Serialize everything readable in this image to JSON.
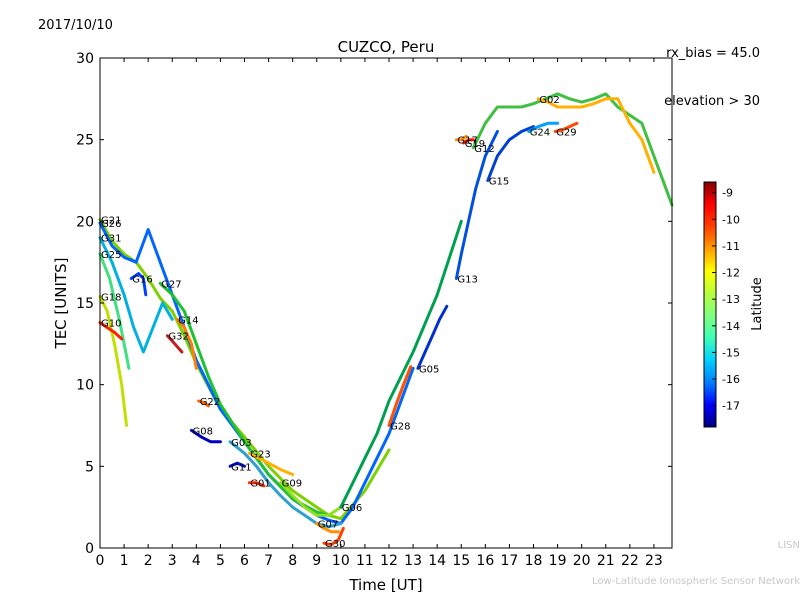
{
  "header": {
    "date": "2017/10/10",
    "rx_bias": "rx_bias = 45.0",
    "elevation": "elevation > 30"
  },
  "footer": {
    "line1": "LISN",
    "line2": "Low-Latitude Ionospheric Sensor Network"
  },
  "chart_data": {
    "type": "scatter",
    "title": "CUZCO, Peru",
    "xlabel": "Time [UT]",
    "ylabel": "TEC [UNITS]",
    "xlim": [
      0,
      23.75
    ],
    "ylim": [
      0,
      30
    ],
    "xticks": [
      "0",
      "1",
      "2",
      "3",
      "4",
      "5",
      "6",
      "7",
      "8",
      "9",
      "10",
      "11",
      "12",
      "13",
      "14",
      "15",
      "16",
      "17",
      "18",
      "19",
      "20",
      "21",
      "22",
      "23"
    ],
    "yticks": [
      "0",
      "5",
      "10",
      "15",
      "20",
      "25",
      "30"
    ],
    "grid": false,
    "colorbar": {
      "label": "Latitude",
      "range": [
        -17.8,
        -8.6
      ],
      "ticks": [
        "-9",
        "-10",
        "-11",
        "-12",
        "-13",
        "-14",
        "-15",
        "-16",
        "-17"
      ],
      "colormap": [
        "#00007f",
        "#0000ff",
        "#007fff",
        "#00cfff",
        "#3fffb7",
        "#7fff7f",
        "#b7ff3f",
        "#ffff00",
        "#ff9f00",
        "#ff3f00",
        "#ff0000",
        "#7f0000"
      ]
    },
    "series": [
      {
        "name": "G21",
        "color": "#7fd000",
        "x": [
          0,
          0.5,
          1,
          1.5,
          2,
          2.5,
          3,
          3.5,
          4,
          5,
          6,
          7,
          8,
          9,
          9.5,
          10,
          11,
          12
        ],
        "y": [
          20.1,
          18.8,
          18,
          17.5,
          16.5,
          15.3,
          14.5,
          13,
          11.3,
          8.5,
          6.8,
          5,
          3.5,
          2.5,
          2,
          1.8,
          3.5,
          6
        ]
      },
      {
        "name": "G26",
        "color": "#0066ff",
        "x": [
          0,
          0.5,
          1,
          1.5,
          2,
          2.5,
          3,
          4,
          5,
          6,
          7,
          8,
          9,
          9.5,
          10,
          10.5,
          11,
          12,
          13
        ],
        "y": [
          19.9,
          18.5,
          17.8,
          17.5,
          19.5,
          17.5,
          15.5,
          11.5,
          8.5,
          6.5,
          4.5,
          3,
          2,
          1.7,
          1.5,
          2.5,
          4,
          7,
          11
        ]
      },
      {
        "name": "G31",
        "color": "#00b0e0",
        "x": [
          0,
          0.5,
          1,
          1.4,
          1.8,
          2.2,
          2.6,
          3
        ],
        "y": [
          19,
          17.5,
          15.5,
          13.5,
          12,
          13.5,
          15,
          14
        ]
      },
      {
        "name": "G25",
        "color": "#40e080",
        "x": [
          0,
          0.4,
          0.8,
          1.2
        ],
        "y": [
          18,
          16.5,
          14,
          11
        ]
      },
      {
        "name": "G18",
        "color": "#c0e000",
        "x": [
          0,
          0.3,
          0.6,
          0.9,
          1.1
        ],
        "y": [
          15.4,
          14.5,
          12.5,
          10,
          7.5
        ]
      },
      {
        "name": "G10",
        "color": "#ff2000",
        "x": [
          0,
          0.3,
          0.6,
          0.9
        ],
        "y": [
          13.8,
          13.5,
          13.2,
          12.8
        ]
      },
      {
        "name": "G16",
        "color": "#0040ff",
        "x": [
          1.3,
          1.6,
          1.8,
          1.9
        ],
        "y": [
          16.5,
          16.8,
          16.5,
          15.5
        ]
      },
      {
        "name": "G27",
        "color": "#20c030",
        "x": [
          2.5,
          3,
          3.5,
          4,
          4.5,
          5,
          6,
          7,
          8,
          9,
          9.5
        ],
        "y": [
          16.2,
          15.5,
          14.5,
          12.5,
          10.5,
          8.8,
          6.5,
          4.5,
          3,
          2.2,
          2
        ]
      },
      {
        "name": "G14",
        "color": "#ff8000",
        "x": [
          3.2,
          3.5,
          3.8,
          4
        ],
        "y": [
          14,
          13.5,
          12.5,
          11
        ]
      },
      {
        "name": "G32",
        "color": "#c02020",
        "x": [
          2.8,
          3.1,
          3.4
        ],
        "y": [
          13,
          12.5,
          12
        ]
      },
      {
        "name": "G22",
        "color": "#ff6000",
        "x": [
          4.1,
          4.3,
          4.5
        ],
        "y": [
          9,
          8.9,
          8.7
        ]
      },
      {
        "name": "G08",
        "color": "#0000c0",
        "x": [
          3.8,
          4.2,
          4.6,
          5
        ],
        "y": [
          7.2,
          6.8,
          6.5,
          6.5
        ]
      },
      {
        "name": "G03",
        "color": "#30a0d0",
        "x": [
          5.4,
          6,
          6.5,
          7,
          7.5,
          8,
          8.5,
          9,
          9.5,
          10
        ],
        "y": [
          6.5,
          5.8,
          5,
          4,
          3.2,
          2.5,
          2,
          1.5,
          1.3,
          1.5
        ]
      },
      {
        "name": "G23",
        "color": "#ffb000",
        "x": [
          6.2,
          6.6,
          7,
          7.5,
          8
        ],
        "y": [
          5.8,
          5.5,
          5.2,
          4.8,
          4.5
        ]
      },
      {
        "name": "G11",
        "color": "#0010d0",
        "x": [
          5.4,
          5.7,
          6
        ],
        "y": [
          5,
          5.2,
          5
        ]
      },
      {
        "name": "G01",
        "color": "#ff3000",
        "x": [
          6.2,
          6.5,
          6.8
        ],
        "y": [
          4,
          4,
          3.8
        ]
      },
      {
        "name": "G09",
        "color": "#90e020",
        "x": [
          7.5,
          8,
          8.5,
          9,
          9.5,
          10
        ],
        "y": [
          4,
          3.2,
          2.5,
          2,
          2,
          2.5
        ]
      },
      {
        "name": "G07",
        "color": "#ff9000",
        "x": [
          9,
          9.3,
          9.6,
          9.9
        ],
        "y": [
          1.5,
          1.2,
          1,
          1
        ]
      },
      {
        "name": "G06",
        "color": "#00a050",
        "x": [
          10,
          10.5,
          11,
          11.5,
          12,
          13,
          14,
          15
        ],
        "y": [
          2.5,
          4,
          5.5,
          7,
          9,
          12,
          15.5,
          20
        ]
      },
      {
        "name": "G30",
        "color": "#ff4000",
        "x": [
          9.3,
          9.6,
          9.9,
          10.1
        ],
        "y": [
          0.3,
          0.2,
          0.5,
          1.2
        ]
      },
      {
        "name": "G28",
        "color": "#ff5000",
        "x": [
          12,
          12.3,
          12.6,
          12.9
        ],
        "y": [
          7.5,
          8.8,
          10,
          11.1
        ]
      },
      {
        "name": "G05",
        "color": "#0030d0",
        "x": [
          13.2,
          13.5,
          13.8,
          14.1,
          14.4
        ],
        "y": [
          11,
          12,
          13,
          14,
          14.8
        ]
      },
      {
        "name": "G13",
        "color": "#0050e0",
        "x": [
          14.8,
          15,
          15.3,
          15.6,
          16,
          16.5
        ],
        "y": [
          16.5,
          18,
          20,
          22,
          24,
          25.5
        ]
      },
      {
        "name": "G15",
        "color": "#0040d0",
        "x": [
          16.1,
          16.5,
          17,
          17.5,
          18
        ],
        "y": [
          22.5,
          24,
          25,
          25.5,
          25.8
        ]
      },
      {
        "name": "G17",
        "color": "#ff8a00",
        "x": [
          14.8,
          15,
          15.2
        ],
        "y": [
          25,
          25,
          25.2
        ]
      },
      {
        "name": "G19",
        "color": "#ff1a00",
        "x": [
          15.1,
          15.3,
          15.5
        ],
        "y": [
          24.8,
          25,
          25
        ]
      },
      {
        "name": "G12",
        "color": "#40c040",
        "x": [
          15.5,
          16,
          16.5,
          17,
          17.5,
          18,
          18.5,
          19,
          19.5,
          20,
          20.5,
          21,
          21.5,
          22,
          22.5,
          23,
          23.5,
          23.75
        ],
        "y": [
          24.5,
          26,
          27,
          27,
          27,
          27.2,
          27.5,
          27.8,
          27.5,
          27.3,
          27.5,
          27.8,
          27,
          26.5,
          26,
          24,
          22,
          21
        ]
      },
      {
        "name": "G24",
        "color": "#00a0ff",
        "x": [
          17.8,
          18.2,
          18.6,
          19
        ],
        "y": [
          25.5,
          25.8,
          26,
          26
        ]
      },
      {
        "name": "G29",
        "color": "#ff4a00",
        "x": [
          18.9,
          19.2,
          19.5,
          19.8
        ],
        "y": [
          25.5,
          25.6,
          25.8,
          26
        ]
      },
      {
        "name": "G02",
        "color": "#ffb000",
        "x": [
          18.2,
          18.6,
          19,
          19.5,
          20,
          20.5,
          21,
          21.5,
          22,
          22.5,
          23
        ],
        "y": [
          27.5,
          27.3,
          27,
          27,
          27,
          27.2,
          27.5,
          27.5,
          26,
          25,
          23
        ]
      }
    ]
  }
}
